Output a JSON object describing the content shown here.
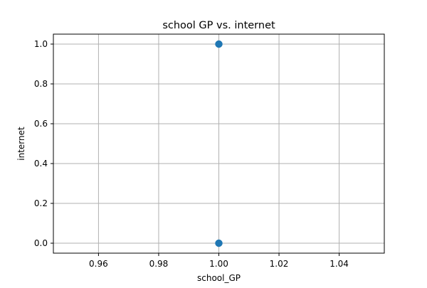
{
  "chart_data": {
    "type": "scatter",
    "title": "school GP vs. internet",
    "xlabel": "school_GP",
    "ylabel": "internet",
    "xlim": [
      0.945,
      1.055
    ],
    "ylim": [
      -0.05,
      1.05
    ],
    "xticks": [
      0.96,
      0.98,
      1.0,
      1.02,
      1.04
    ],
    "xtick_labels": [
      "0.96",
      "0.98",
      "1.00",
      "1.02",
      "1.04"
    ],
    "yticks": [
      0.0,
      0.2,
      0.4,
      0.6,
      0.8,
      1.0
    ],
    "ytick_labels": [
      "0.0",
      "0.2",
      "0.4",
      "0.6",
      "0.8",
      "1.0"
    ],
    "grid": true,
    "points": [
      {
        "x": 1.0,
        "y": 1.0
      },
      {
        "x": 1.0,
        "y": 0.0
      }
    ],
    "marker_color": "#1f77b4"
  }
}
